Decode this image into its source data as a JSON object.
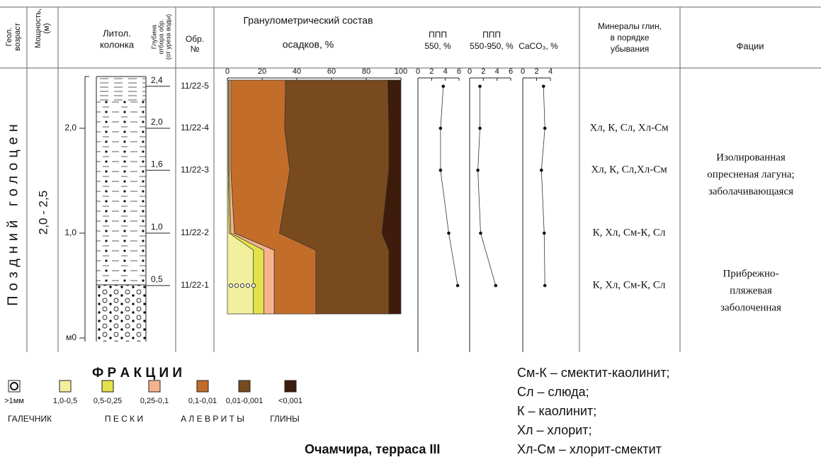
{
  "header": {
    "geo_age": [
      "Геол.",
      "возраст"
    ],
    "thickness": [
      "Мощность,",
      "(м)"
    ],
    "litho": [
      "Литол.",
      "колонка"
    ],
    "depth": [
      "Глубина",
      "отбора обр.",
      "(от уреза воды)"
    ],
    "sample": [
      "Обр.",
      "№"
    ],
    "grain": [
      "Гранулометрический состав",
      "осадков, %"
    ],
    "ppp550": [
      "ППП",
      "550, %"
    ],
    "ppp550950": [
      "ППП",
      "550-950, %"
    ],
    "caco3": "CaCO₃, %",
    "minerals": [
      "Минералы глин,",
      "в порядке",
      "убывания"
    ],
    "facies": "Фации"
  },
  "age": "Поздний голоцен",
  "thickness": "2,0 - 2,5",
  "depth_ticks": [
    {
      "value": 2,
      "label": "2,0"
    },
    {
      "value": 1,
      "label": "1,0"
    },
    {
      "value": 0,
      "label": "м0"
    }
  ],
  "grain_axis": {
    "xlim": [
      0,
      100
    ],
    "xticks": [
      0,
      20,
      40,
      60,
      80,
      100
    ]
  },
  "ppp550_axis": {
    "xlim": [
      0,
      6
    ],
    "xticks": [
      0,
      2,
      4,
      6
    ]
  },
  "ppp550950_axis": {
    "xlim": [
      0,
      6
    ],
    "xticks": [
      0,
      2,
      4,
      6
    ]
  },
  "caco3_axis": {
    "xlim": [
      0,
      4
    ],
    "xticks": [
      0,
      2,
      4
    ]
  },
  "samples": [
    {
      "id": "11/22-5",
      "depth": {
        "value": 2.4,
        "label": "2,4"
      },
      "grain": [
        0.5,
        0.5,
        1,
        31.5,
        59,
        7.5
      ],
      "ppp550": 3.7,
      "ppp550950": 1.5,
      "caco3": 3.0
    },
    {
      "id": "11/22-4",
      "depth": {
        "value": 2.0,
        "label": "2,0"
      },
      "grain": [
        0.5,
        0.5,
        1,
        31,
        60,
        7
      ],
      "ppp550": 3.3,
      "ppp550950": 1.5,
      "caco3": 3.2,
      "minerals": "Хл, К, Сл, Хл-См"
    },
    {
      "id": "11/22-3",
      "depth": {
        "value": 1.6,
        "label": "1,6"
      },
      "grain": [
        0.5,
        0.5,
        1,
        34,
        57,
        7
      ],
      "ppp550": 3.3,
      "ppp550950": 1.2,
      "caco3": 2.7,
      "minerals": "Хл, К, Сл,Хл-См"
    },
    {
      "id": "11/22-2",
      "depth": {
        "value": 1.0,
        "label": "1,0"
      },
      "grain": [
        1,
        1,
        2,
        26,
        59,
        11
      ],
      "ppp550": 4.5,
      "ppp550950": 1.6,
      "caco3": 3.1,
      "minerals": "К, Хл, См-К, Сл"
    },
    {
      "id": "11/22-1",
      "depth": {
        "value": 0.5,
        "label": "0,5"
      },
      "grain": [
        15,
        6,
        6,
        24,
        42,
        7
      ],
      "ppp550": 5.8,
      "ppp550950": 3.8,
      "caco3": 3.2,
      "minerals": "К, Хл, См-К, Сл"
    }
  ],
  "facies": [
    [
      "Изолированная",
      "опресненая лагуна;",
      "заболачивающаяся"
    ],
    [
      "Прибрежно-",
      "пляжевая",
      "заболоченная"
    ]
  ],
  "legend": {
    "title": "Ф Р А К Ц И И",
    "items": [
      {
        "label": ">1мм"
      },
      {
        "label": "1,0-0,5",
        "color": "#f2f09c"
      },
      {
        "label": "0,5-0,25",
        "color": "#e4e24a"
      },
      {
        "label": "0,25-0,1",
        "color": "#f4b58e"
      },
      {
        "label": "0,1-0,01",
        "color": "#c36d2a"
      },
      {
        "label": "0,01-0,001",
        "color": "#7a4a1f"
      },
      {
        "label": "<0,001",
        "color": "#3d1c0b"
      }
    ],
    "groups": [
      "ГАЛЕЧНИК",
      "П Е С К И",
      "А Л Е В Р И Т Ы",
      "ГЛИНЫ"
    ]
  },
  "caption": "Очамчира, терраса III",
  "abbreviations": [
    "См-К – смектит-каолинит;",
    "Сл – слюда;",
    "К – каолинит;",
    "Хл – хлорит;",
    "Хл-См – хлорит-смектит"
  ]
}
